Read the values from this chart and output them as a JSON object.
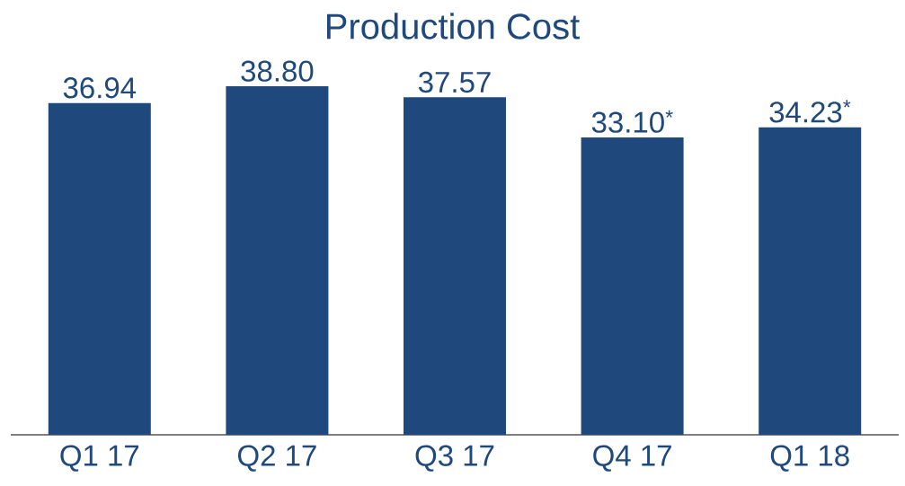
{
  "chart_data": {
    "type": "bar",
    "title": "Production Cost",
    "categories": [
      "Q1 17",
      "Q2 17",
      "Q3 17",
      "Q4 17",
      "Q1 18"
    ],
    "values": [
      36.94,
      38.8,
      37.57,
      33.1,
      34.23
    ],
    "value_labels": [
      "36.94",
      "38.80",
      "37.57",
      "33.10$^{*}$",
      "34.23$^{*}$"
    ],
    "color": "#1f497d"
  }
}
